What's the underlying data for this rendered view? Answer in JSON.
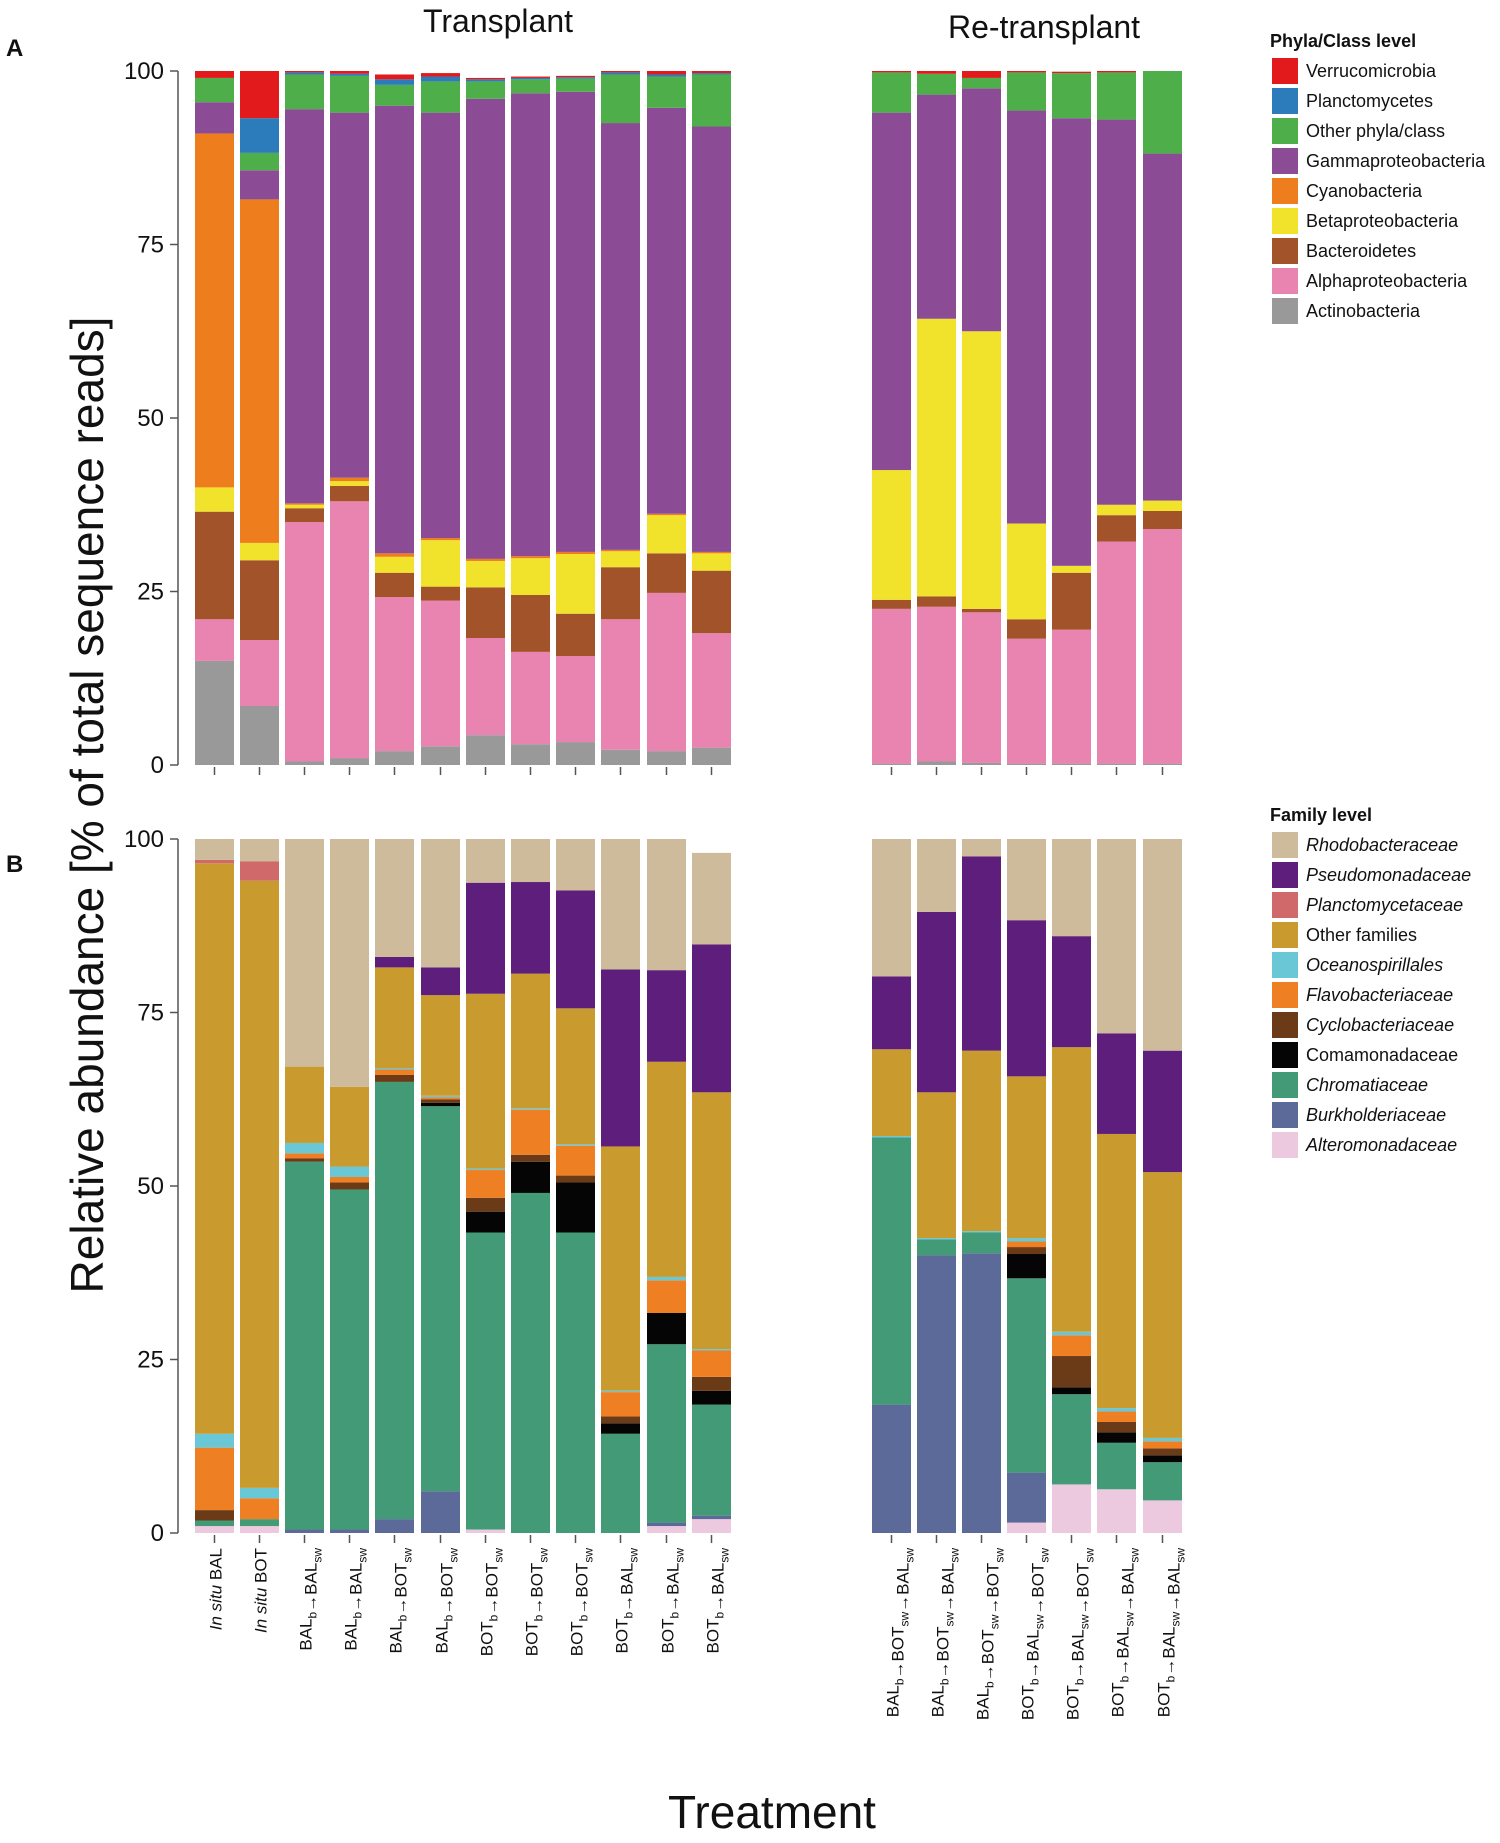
{
  "figure": {
    "ylabel": "Relative abundance [% of total sequence reads]",
    "xlabel": "Treatment"
  },
  "chart_data": [
    {
      "panel": "A",
      "type": "bar",
      "stacked": true,
      "groups": [
        "Transplant",
        "Re-transplant"
      ],
      "ylim": [
        0,
        100
      ],
      "yticks": [
        0,
        25,
        50,
        75,
        100
      ],
      "legend_title": "Phyla/Class level",
      "legend_position": "right",
      "categories": [
        {
          "group": "Transplant",
          "label": "In situ BAL"
        },
        {
          "group": "Transplant",
          "label": "In situ BOT"
        },
        {
          "group": "Transplant",
          "label": "BALb→BALsw"
        },
        {
          "group": "Transplant",
          "label": "BALb→BALsw"
        },
        {
          "group": "Transplant",
          "label": "BALb→BOTsw"
        },
        {
          "group": "Transplant",
          "label": "BALb→BOTsw"
        },
        {
          "group": "Transplant",
          "label": "BOTb→BOTsw"
        },
        {
          "group": "Transplant",
          "label": "BOTb→BOTsw"
        },
        {
          "group": "Transplant",
          "label": "BOTb→BOTsw"
        },
        {
          "group": "Transplant",
          "label": "BOTb→BALsw"
        },
        {
          "group": "Transplant",
          "label": "BOTb→BALsw"
        },
        {
          "group": "Transplant",
          "label": "BOTb→BALsw"
        },
        {
          "group": "Re-transplant",
          "label": "BALb→BOTsw→BALsw"
        },
        {
          "group": "Re-transplant",
          "label": "BALb→BOTsw→BALsw"
        },
        {
          "group": "Re-transplant",
          "label": "BALb→BOTsw→BOTsw"
        },
        {
          "group": "Re-transplant",
          "label": "BOTb→BALsw→BOTsw"
        },
        {
          "group": "Re-transplant",
          "label": "BOTb→BALsw→BOTsw"
        },
        {
          "group": "Re-transplant",
          "label": "BOTb→BALsw→BALsw"
        },
        {
          "group": "Re-transplant",
          "label": "BOTb→BALsw→BALsw"
        }
      ],
      "series": [
        {
          "name": "Actinobacteria",
          "color": "#999999",
          "italic": false,
          "values": [
            15,
            8.5,
            0.5,
            1,
            2,
            2.7,
            4.3,
            3,
            3.3,
            2.2,
            2,
            2.5,
            0.2,
            0.5,
            0.3,
            0.2,
            0.2,
            0.2,
            0.2
          ]
        },
        {
          "name": "Alphaproteobacteria",
          "color": "#E884AF",
          "italic": false,
          "values": [
            6,
            9.5,
            34.5,
            37,
            22.2,
            21,
            14,
            13.3,
            12.4,
            18.8,
            22.8,
            16.5,
            22.3,
            22.3,
            21.7,
            18,
            19.3,
            32,
            33.8
          ]
        },
        {
          "name": "Bacteroidetes",
          "color": "#A3532A",
          "italic": false,
          "values": [
            15.5,
            11.5,
            2,
            2.2,
            3.5,
            2,
            7.3,
            8.2,
            6.1,
            7.5,
            5.7,
            9,
            1.3,
            1.5,
            0.5,
            2.8,
            8.2,
            3.8,
            2.6
          ]
        },
        {
          "name": "Betaproteobacteria",
          "color": "#F1E22B",
          "italic": false,
          "values": [
            3.5,
            2.5,
            0.5,
            0.7,
            2.3,
            6.7,
            3.8,
            5.3,
            8.6,
            2.3,
            5.5,
            2.5,
            18.7,
            40,
            40,
            13.8,
            1,
            1.5,
            1.5
          ]
        },
        {
          "name": "Cyanobacteria",
          "color": "#EE7E1D",
          "italic": false,
          "values": [
            51,
            49.5,
            0.2,
            0.5,
            0.5,
            0.3,
            0.3,
            0.3,
            0.3,
            0.2,
            0.2,
            0.2,
            0,
            0,
            0,
            0,
            0,
            0,
            0
          ]
        },
        {
          "name": "Gammaproteobacteria",
          "color": "#8B4C95",
          "italic": false,
          "values": [
            4.5,
            4.2,
            56.8,
            52.6,
            64.5,
            61.3,
            66.3,
            66.7,
            66.3,
            61.5,
            58.5,
            61.3,
            51.5,
            32.3,
            35,
            59.5,
            64.5,
            55.5,
            50
          ]
        },
        {
          "name": "Other phyla/class",
          "color": "#4DAE4A",
          "italic": false,
          "values": [
            3.5,
            2.5,
            5,
            5.3,
            3,
            4.5,
            2.5,
            2,
            1.9,
            7,
            4.5,
            7.5,
            5.8,
            3,
            1.5,
            5.5,
            6.5,
            6.8,
            12
          ]
        },
        {
          "name": "Planctomycetes",
          "color": "#2C7BBA",
          "italic": false,
          "values": [
            0,
            5,
            0.3,
            0.3,
            0.8,
            0.7,
            0.3,
            0.2,
            0.2,
            0.3,
            0.3,
            0.2,
            0,
            0,
            0,
            0,
            0,
            0,
            0
          ]
        },
        {
          "name": "Verrucomicrobia",
          "color": "#E31A1C",
          "italic": false,
          "values": [
            1,
            6.8,
            0.2,
            0.4,
            0.7,
            0.5,
            0.2,
            0.2,
            0.2,
            0.2,
            0.5,
            0.3,
            0.2,
            0.4,
            2.5,
            0.2,
            0.2,
            0.2,
            0.2
          ]
        }
      ]
    },
    {
      "panel": "B",
      "type": "bar",
      "stacked": true,
      "groups": [
        "Transplant",
        "Re-transplant"
      ],
      "ylim": [
        0,
        100
      ],
      "yticks": [
        0,
        25,
        50,
        75,
        100
      ],
      "legend_title": "Family level",
      "legend_position": "right",
      "series": [
        {
          "name": "Alteromonadaceae",
          "color": "#EDC9DF",
          "italic": true,
          "values": [
            1,
            1,
            0,
            0,
            0,
            0,
            0.5,
            0,
            0,
            0,
            1,
            2,
            0,
            0,
            0,
            1.5,
            7,
            6.3,
            4.7
          ]
        },
        {
          "name": "Burkholderiaceae",
          "color": "#5B6A99",
          "italic": true,
          "values": [
            0,
            0,
            0.5,
            0.5,
            2,
            6,
            0,
            0,
            0,
            0,
            0.5,
            0.5,
            18.5,
            40,
            40.3,
            7.2,
            0,
            0,
            0
          ]
        },
        {
          "name": "Chromatiaceae",
          "color": "#429B76",
          "italic": true,
          "values": [
            0.8,
            1,
            53,
            49,
            63,
            55.5,
            42.8,
            49,
            43.3,
            14.3,
            25.7,
            16,
            38.5,
            2.3,
            3,
            28,
            13,
            6.7,
            5.5
          ]
        },
        {
          "name": "Comamonadaceae",
          "color": "#050505",
          "italic": false,
          "values": [
            0,
            0,
            0,
            0,
            0,
            0.5,
            3,
            4.5,
            7.2,
            1.5,
            4.5,
            2,
            0,
            0,
            0,
            3.5,
            1,
            1.5,
            1
          ]
        },
        {
          "name": "Cyclobacteriaceae",
          "color": "#6B3A16",
          "italic": true,
          "values": [
            1.5,
            0,
            0.5,
            1,
            1,
            0.5,
            2,
            1,
            1,
            1,
            0,
            2,
            0,
            0,
            0,
            1,
            4.5,
            1.5,
            1
          ]
        },
        {
          "name": "Flavobacteriaceae",
          "color": "#EE7F22",
          "italic": true,
          "values": [
            9,
            3,
            0.7,
            0.8,
            0.8,
            0.3,
            4,
            6.5,
            4.3,
            3.5,
            4.7,
            3.8,
            0,
            0,
            0,
            0.8,
            3,
            1.5,
            1
          ]
        },
        {
          "name": "Oceanospirillales",
          "color": "#69C7D6",
          "italic": true,
          "values": [
            2,
            1.5,
            1.5,
            1.5,
            0.2,
            0.2,
            0.2,
            0.2,
            0.2,
            0.2,
            0.5,
            0.2,
            0.2,
            0.2,
            0.2,
            0.5,
            0.5,
            0.5,
            0.5
          ]
        },
        {
          "name": "Other families",
          "color": "#C99B2E",
          "italic": false,
          "values": [
            82.2,
            87.5,
            11,
            11.5,
            14.5,
            14.5,
            25.2,
            19.4,
            19.6,
            35.2,
            31,
            37,
            12.5,
            21,
            26,
            23.3,
            41,
            39.5,
            38.3
          ]
        },
        {
          "name": "Planctomycetaceae",
          "color": "#D06A6A",
          "italic": true,
          "values": [
            0.5,
            2.8,
            0,
            0,
            0,
            0,
            0,
            0,
            0,
            0,
            0,
            0,
            0,
            0,
            0,
            0,
            0,
            0,
            0
          ]
        },
        {
          "name": "Pseudomonadaceae",
          "color": "#5E1E7B",
          "italic": true,
          "values": [
            0,
            0,
            0,
            0,
            1.5,
            4,
            16,
            13.2,
            17,
            25.5,
            13.2,
            21.3,
            10.5,
            26,
            28,
            22.5,
            16,
            14.5,
            17.5
          ]
        },
        {
          "name": "Rhodobacteraceae",
          "color": "#CDBB9C",
          "italic": true,
          "values": [
            3,
            3.2,
            32.8,
            35.7,
            17,
            18.5,
            6.3,
            6.2,
            7.4,
            18.8,
            18.9,
            13.2,
            19.8,
            10.5,
            2.5,
            11.7,
            14,
            28,
            30.5
          ]
        }
      ]
    }
  ]
}
